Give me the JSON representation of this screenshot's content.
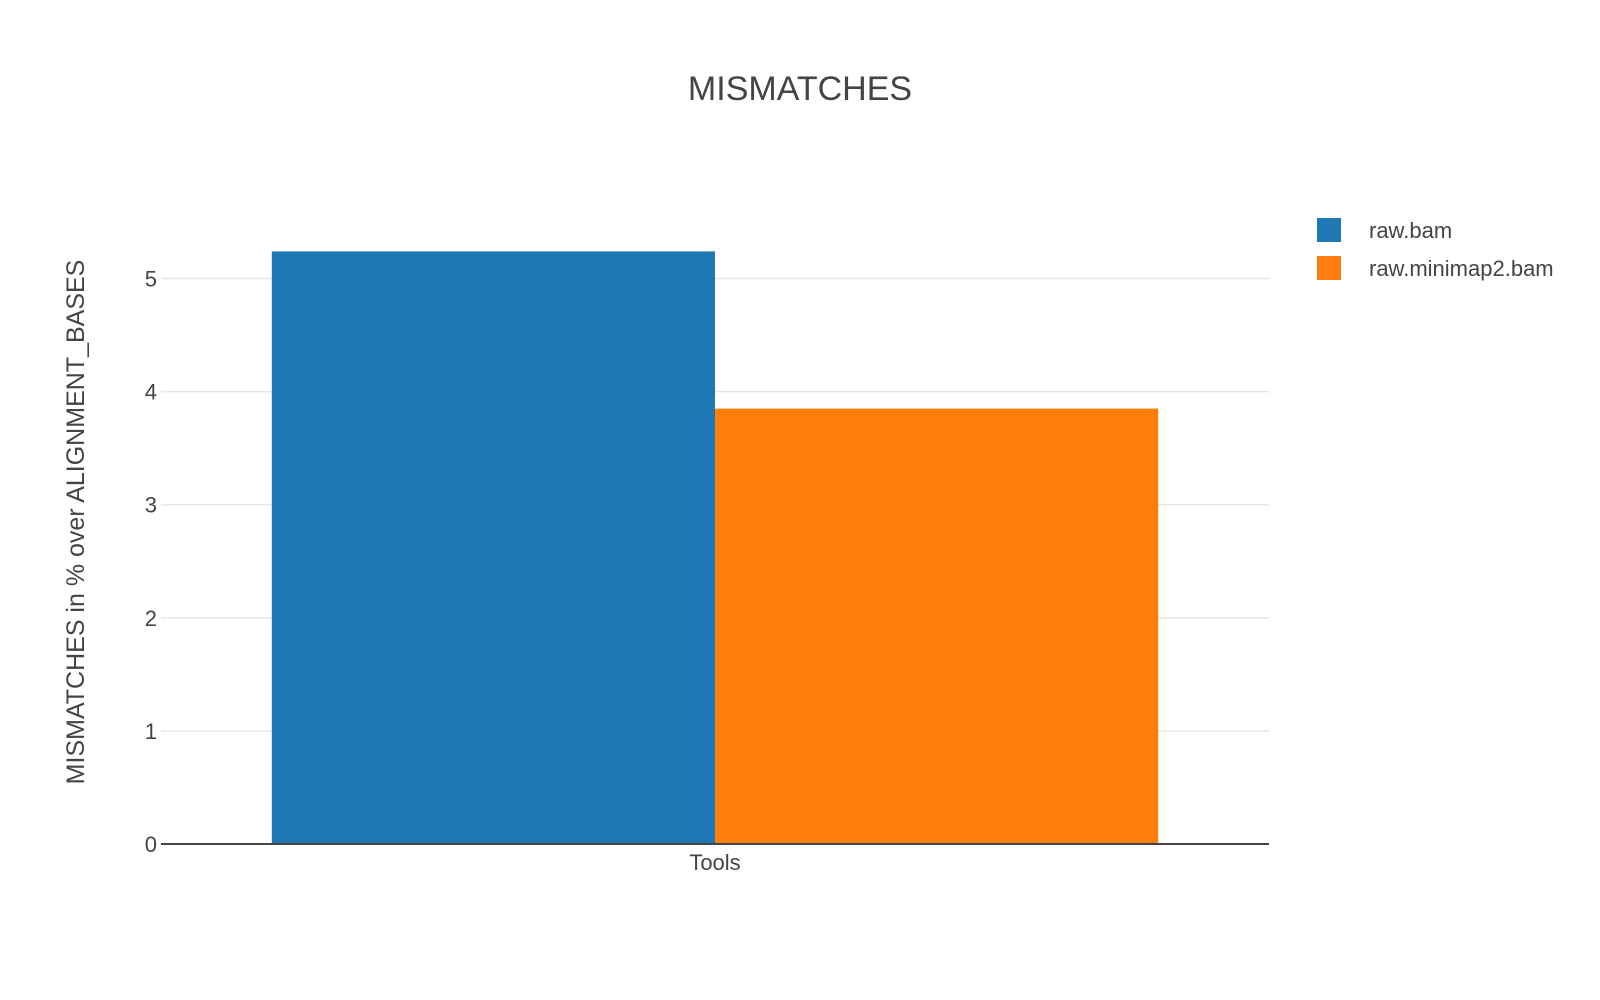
{
  "chart_data": {
    "type": "bar",
    "title": "MISMATCHES",
    "xlabel": "",
    "ylabel": "MISMATCHES in % over ALIGNMENT_BASES",
    "categories": [
      "Tools"
    ],
    "series": [
      {
        "name": "raw.bam",
        "values": [
          5.24
        ],
        "color": "#1f77b4"
      },
      {
        "name": "raw.minimap2.bam",
        "values": [
          3.85
        ],
        "color": "#ff7f0e"
      }
    ],
    "ylim": [
      0,
      5.5
    ],
    "yticks": [
      0,
      1,
      2,
      3,
      4,
      5
    ],
    "grid": true,
    "legend_position": "top-right"
  }
}
